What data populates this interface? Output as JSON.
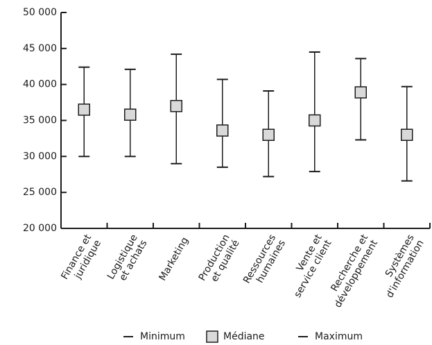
{
  "chart_data": {
    "type": "range",
    "categories": [
      "Finance et\njuridique",
      "Logistique\net achats",
      "Marketing",
      "Production\net qualité",
      "Ressources\nhumaines",
      "Vente et\nservice client",
      "Recherche et\ndéveloppement",
      "Systèmes\nd'information"
    ],
    "series": [
      {
        "name": "Minimum",
        "color": "#1a1a1a",
        "values": [
          30000,
          30000,
          29000,
          28500,
          27200,
          27900,
          32300,
          26600
        ]
      },
      {
        "name": "Médiane",
        "color": "#d9d9d9",
        "values": [
          36500,
          35800,
          37000,
          33600,
          33000,
          35000,
          38900,
          33000
        ]
      },
      {
        "name": "Maximum",
        "color": "#1a1a1a",
        "values": [
          42400,
          42100,
          44200,
          40700,
          39100,
          44500,
          43600,
          39700
        ]
      }
    ],
    "ylim": [
      20000,
      50000
    ],
    "yticks": [
      {
        "value": 20000,
        "label": "20 000"
      },
      {
        "value": 25000,
        "label": "25 000"
      },
      {
        "value": 30000,
        "label": "30 000"
      },
      {
        "value": 35000,
        "label": "35 000"
      },
      {
        "value": 40000,
        "label": "40 000"
      },
      {
        "value": 45000,
        "label": "45 000"
      },
      {
        "value": 50000,
        "label": "50 000"
      }
    ],
    "grid": false
  }
}
